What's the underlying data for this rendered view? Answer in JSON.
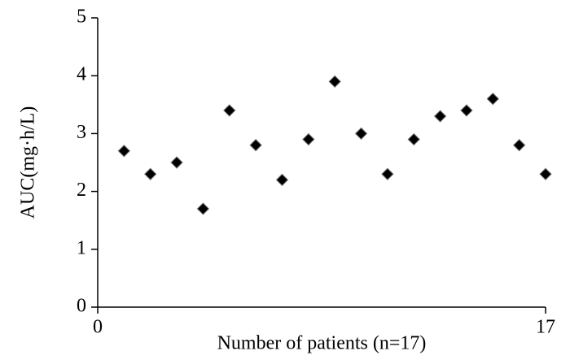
{
  "chart_data": {
    "type": "scatter",
    "x_label": "Number of patients (n=17)",
    "y_label": "AUC(mg·h/L)",
    "x": [
      1,
      2,
      3,
      4,
      5,
      6,
      7,
      8,
      9,
      10,
      11,
      12,
      13,
      14,
      15,
      16,
      17
    ],
    "values": [
      2.7,
      2.3,
      2.5,
      1.7,
      3.4,
      2.8,
      2.2,
      2.9,
      3.9,
      3.0,
      2.3,
      2.9,
      3.3,
      3.4,
      3.6,
      2.8,
      2.3
    ],
    "color": "#000000",
    "xlim": [
      0,
      17
    ],
    "xticks": [
      0,
      17
    ],
    "ylim": [
      0,
      5
    ],
    "yticks": [
      0,
      1,
      2,
      3,
      4,
      5
    ],
    "grid": false
  }
}
